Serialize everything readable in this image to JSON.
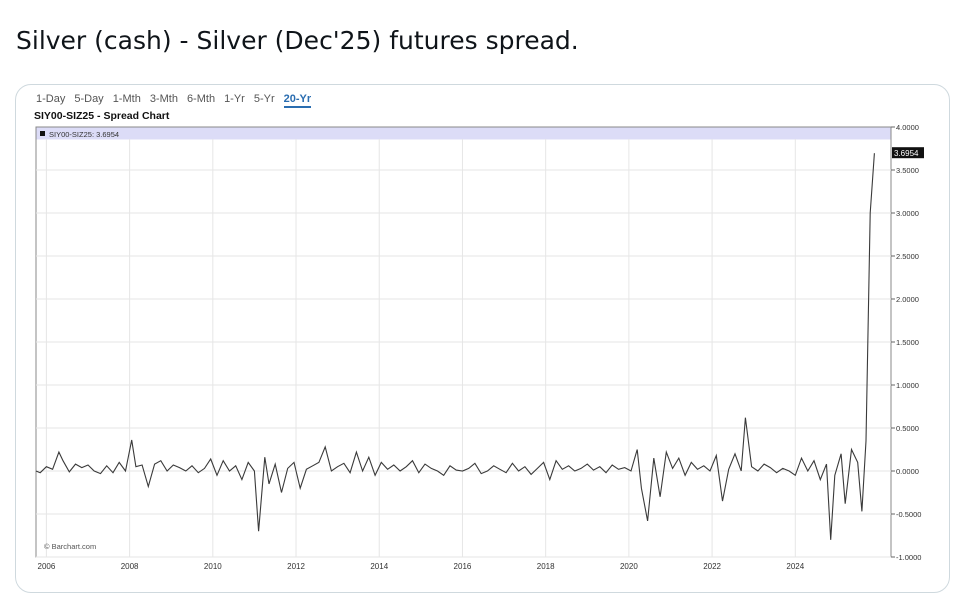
{
  "post": {
    "title": "Silver (cash) - Silver (Dec'25) futures spread."
  },
  "toolbar": {
    "ranges": [
      "1-Day",
      "5-Day",
      "1-Mth",
      "3-Mth",
      "6-Mth",
      "1-Yr",
      "5-Yr",
      "20-Yr"
    ],
    "active_range": "20-Yr"
  },
  "colors": {
    "line": "#3a3a3a",
    "legend_band": "#dcdcf7",
    "last_value_box": "#111111",
    "active_tab": "#2a6db0"
  },
  "chart_data": {
    "type": "line",
    "title": "SIY00-SIZ25 - Spread Chart",
    "legend": "SIY00-SIZ25: 3.6954",
    "watermark": "© Barchart.com",
    "last_value_label": "3.6954",
    "xlim": [
      2005.75,
      2026.3
    ],
    "ylim": [
      -1.0,
      4.0
    ],
    "x_ticks": [
      2006,
      2008,
      2010,
      2012,
      2014,
      2016,
      2018,
      2020,
      2022,
      2024
    ],
    "y_ticks": [
      "4.0000",
      "3.5000",
      "3.0000",
      "2.5000",
      "2.0000",
      "1.5000",
      "1.0000",
      "0.5000",
      "0.0000",
      "-0.5000",
      "-1.0000"
    ],
    "y_tick_values": [
      4.0,
      3.5,
      3.0,
      2.5,
      2.0,
      1.5,
      1.0,
      0.5,
      0.0,
      -0.5,
      -1.0
    ],
    "grid": true,
    "series": [
      {
        "x": [
          2005.75,
          2005.85,
          2006.0,
          2006.15,
          2006.3,
          2006.4,
          2006.55,
          2006.7,
          2006.85,
          2007.0,
          2007.15,
          2007.3,
          2007.45,
          2007.6,
          2007.75,
          2007.9,
          2008.05,
          2008.15,
          2008.3,
          2008.45,
          2008.6,
          2008.75,
          2008.9,
          2009.05,
          2009.2,
          2009.35,
          2009.5,
          2009.65,
          2009.8,
          2009.95,
          2010.1,
          2010.25,
          2010.4,
          2010.55,
          2010.7,
          2010.85,
          2011.0,
          2011.1,
          2011.25,
          2011.35,
          2011.5,
          2011.65,
          2011.8,
          2011.95,
          2012.1,
          2012.25,
          2012.4,
          2012.55,
          2012.7,
          2012.85,
          2013.0,
          2013.15,
          2013.3,
          2013.45,
          2013.6,
          2013.75,
          2013.9,
          2014.05,
          2014.2,
          2014.35,
          2014.5,
          2014.65,
          2014.8,
          2014.95,
          2015.1,
          2015.25,
          2015.4,
          2015.55,
          2015.7,
          2015.85,
          2016.0,
          2016.15,
          2016.3,
          2016.45,
          2016.6,
          2016.75,
          2016.9,
          2017.05,
          2017.2,
          2017.35,
          2017.5,
          2017.65,
          2017.8,
          2017.95,
          2018.1,
          2018.25,
          2018.4,
          2018.55,
          2018.7,
          2018.85,
          2019.0,
          2019.15,
          2019.3,
          2019.45,
          2019.6,
          2019.75,
          2019.9,
          2020.05,
          2020.2,
          2020.3,
          2020.45,
          2020.6,
          2020.75,
          2020.9,
          2021.05,
          2021.2,
          2021.35,
          2021.5,
          2021.65,
          2021.8,
          2021.95,
          2022.1,
          2022.25,
          2022.4,
          2022.55,
          2022.7,
          2022.8,
          2022.95,
          2023.1,
          2023.25,
          2023.4,
          2023.55,
          2023.7,
          2023.85,
          2024.0,
          2024.15,
          2024.3,
          2024.45,
          2024.6,
          2024.75,
          2024.85,
          2024.95,
          2025.1,
          2025.2,
          2025.35,
          2025.5,
          2025.6,
          2025.7,
          2025.8,
          2025.9
        ],
        "y": [
          0.0,
          -0.02,
          0.05,
          0.02,
          0.22,
          0.12,
          -0.01,
          0.08,
          0.04,
          0.07,
          0.0,
          -0.03,
          0.06,
          -0.02,
          0.1,
          0.0,
          0.36,
          0.05,
          0.07,
          -0.18,
          0.08,
          0.12,
          0.0,
          0.07,
          0.04,
          0.0,
          0.06,
          -0.02,
          0.03,
          0.14,
          -0.05,
          0.12,
          0.0,
          0.06,
          -0.1,
          0.1,
          0.0,
          -0.7,
          0.16,
          -0.15,
          0.08,
          -0.25,
          0.03,
          0.1,
          -0.2,
          0.02,
          0.06,
          0.1,
          0.28,
          0.0,
          0.05,
          0.09,
          -0.02,
          0.22,
          0.0,
          0.16,
          -0.05,
          0.1,
          0.02,
          0.07,
          0.0,
          0.05,
          0.12,
          -0.02,
          0.08,
          0.03,
          0.0,
          -0.05,
          0.06,
          0.01,
          0.0,
          0.03,
          0.09,
          -0.03,
          0.0,
          0.06,
          0.02,
          -0.02,
          0.09,
          0.0,
          0.05,
          -0.04,
          0.03,
          0.1,
          -0.1,
          0.12,
          0.02,
          0.06,
          0.0,
          0.03,
          0.08,
          0.01,
          0.05,
          -0.02,
          0.07,
          0.02,
          0.04,
          0.0,
          0.25,
          -0.2,
          -0.58,
          0.15,
          -0.3,
          0.22,
          0.03,
          0.15,
          -0.05,
          0.1,
          0.02,
          0.06,
          0.0,
          0.18,
          -0.35,
          0.02,
          0.2,
          0.0,
          0.62,
          0.05,
          0.0,
          0.08,
          0.04,
          -0.02,
          0.03,
          0.0,
          -0.05,
          0.15,
          0.0,
          0.12,
          -0.1,
          0.08,
          -0.8,
          -0.05,
          0.2,
          -0.38,
          0.25,
          0.1,
          -0.47,
          0.35,
          3.0,
          3.6954
        ]
      }
    ]
  }
}
